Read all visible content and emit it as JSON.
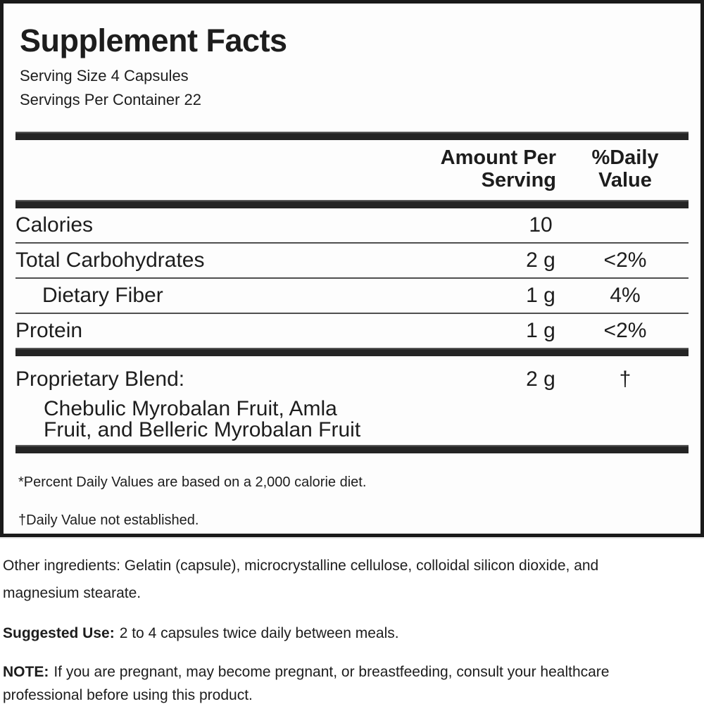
{
  "label": {
    "title": "Supplement Facts",
    "serving_size": "Serving Size 4 Capsules",
    "servings_per_container": "Servings Per Container 22",
    "header": {
      "amount_line1": "Amount Per",
      "amount_line2": "Serving",
      "dv_line1": "%Daily",
      "dv_line2": "Value"
    },
    "rows": [
      {
        "name": "Calories",
        "amount": "10",
        "dv": ""
      },
      {
        "name": "Total Carbohydrates",
        "amount": "2 g",
        "dv": "<2%"
      },
      {
        "name": "Dietary Fiber",
        "amount": "1 g",
        "dv": "4%"
      },
      {
        "name": "Protein",
        "amount": "1 g",
        "dv": "<2%"
      }
    ],
    "proprietary_blend": {
      "name": "Proprietary Blend:",
      "amount": "2 g",
      "dv": "†",
      "ingredients_line1": "Chebulic Myrobalan Fruit, Amla",
      "ingredients_line2": "Fruit, and Belleric Myrobalan Fruit"
    },
    "footnote_percent": "*Percent Daily Values are based on a 2,000 calorie diet.",
    "footnote_dagger": "†Daily Value not established."
  },
  "details": {
    "other_ingredients_line1": "Other ingredients: Gelatin (capsule), microcrystalline cellulose, colloidal silicon dioxide, and",
    "other_ingredients_line2": "magnesium stearate.",
    "suggested_use_label": "Suggested Use:",
    "suggested_use_text": "2 to 4 capsules twice daily between meals.",
    "note_label": "NOTE:",
    "note_line1_text": "If you are pregnant, may become pregnant, or breastfeeding, consult your healthcare",
    "note_line2": "professional before using this product."
  },
  "colors": {
    "text": "#1d1d1d",
    "thick_rule": "#242424",
    "thin_rule": "#4f4f4f",
    "panel_border": "#1a1a1a",
    "background": "#fdfdfd"
  }
}
